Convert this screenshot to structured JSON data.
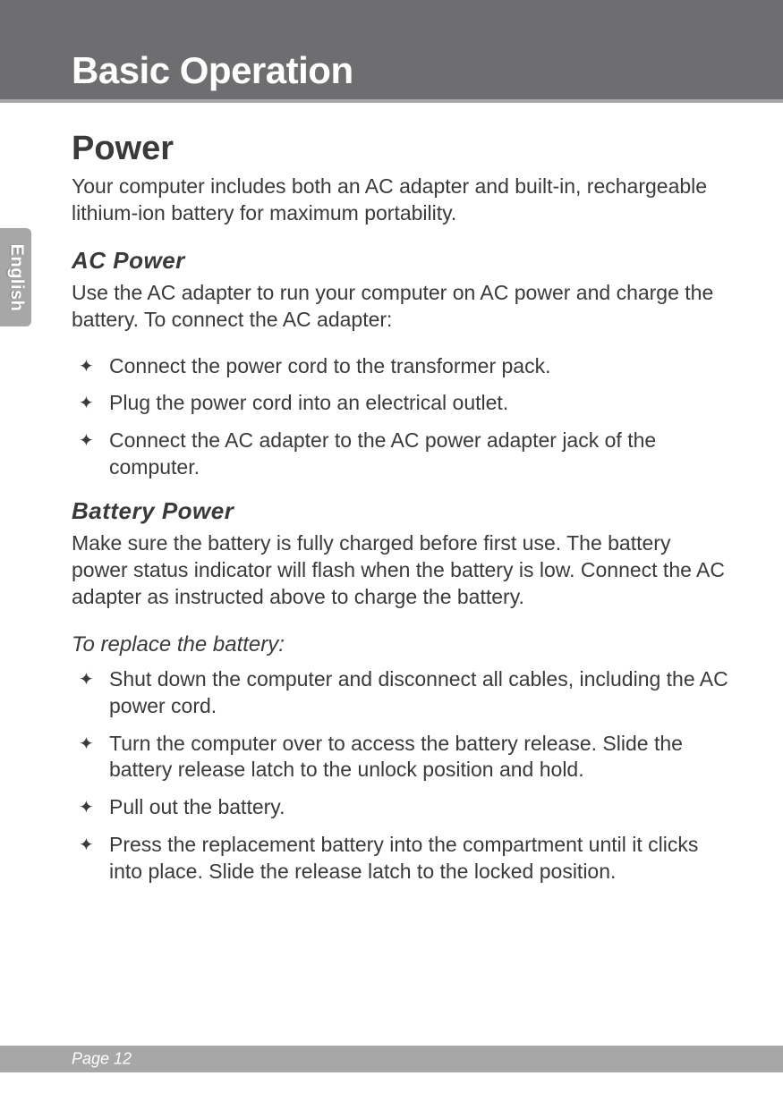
{
  "chapter_title": "Basic Operation",
  "language_tab": "English",
  "page_label": "Page 12",
  "colors": {
    "header_bg": "#6e6e70",
    "accent_band": "#a7a7a8",
    "text": "#3a3a3a",
    "white": "#ffffff",
    "page_bg": "#ffffff"
  },
  "typography": {
    "chapter_title_size_pt": 32,
    "h1_size_pt": 28,
    "h2_size_pt": 20,
    "h3_size_pt": 18,
    "body_size_pt": 17
  },
  "sections": {
    "power": {
      "heading": "Power",
      "intro": "Your computer includes both an AC adapter and built-in, rechargeable lithium-ion battery for maximum portability."
    },
    "ac_power": {
      "heading": "AC  Power",
      "intro": "Use the AC adapter to run your computer on AC power and charge the battery.  To connect the AC adapter:",
      "items": [
        "Connect the power cord to the transformer pack.",
        "Plug the power cord into an electrical outlet.",
        "Connect the AC adapter to the AC power adapter jack of the computer."
      ]
    },
    "battery_power": {
      "heading": "Battery Power",
      "intro": "Make sure the battery is fully charged before first use. The battery power status indicator will flash when the battery is low. Connect the AC adapter as instructed above to charge the battery."
    },
    "replace_battery": {
      "heading": "To replace the battery:",
      "items": [
        "Shut down the computer and disconnect all cables, including the AC power cord.",
        "Turn the computer over to access the battery release. Slide the battery release latch to the unlock position and hold.",
        "Pull out the battery.",
        "Press the replacement battery into the compartment until it clicks into place. Slide the release latch to the locked position."
      ]
    }
  },
  "bullet_glyph": "✦"
}
